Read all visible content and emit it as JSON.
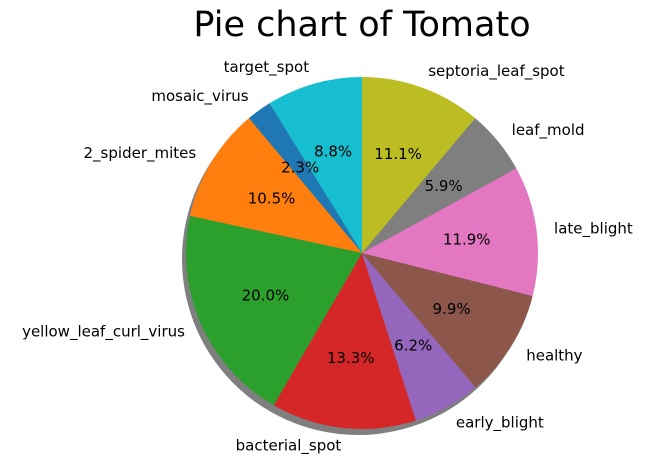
{
  "chart_data": {
    "type": "pie",
    "title": "Pie chart of Tomato",
    "shadow": true,
    "start_angle_deg": 90,
    "direction": "counterclockwise",
    "slices": [
      {
        "label": "target_spot",
        "value": 8.8,
        "pct_text": "8.8%",
        "color": "#17becf"
      },
      {
        "label": "mosaic_virus",
        "value": 2.3,
        "pct_text": "2.3%",
        "color": "#1f77b4"
      },
      {
        "label": "2_spider_mites",
        "value": 10.5,
        "pct_text": "10.5%",
        "color": "#ff7f0e"
      },
      {
        "label": "yellow_leaf_curl_virus",
        "value": 20.0,
        "pct_text": "20.0%",
        "color": "#2ca02c"
      },
      {
        "label": "bacterial_spot",
        "value": 13.3,
        "pct_text": "13.3%",
        "color": "#d62728"
      },
      {
        "label": "early_blight",
        "value": 6.2,
        "pct_text": "6.2%",
        "color": "#9467bd"
      },
      {
        "label": "healthy",
        "value": 9.9,
        "pct_text": "9.9%",
        "color": "#8c564b"
      },
      {
        "label": "late_blight",
        "value": 11.9,
        "pct_text": "11.9%",
        "color": "#e377c2"
      },
      {
        "label": "leaf_mold",
        "value": 5.9,
        "pct_text": "5.9%",
        "color": "#7f7f7f"
      },
      {
        "label": "septoria_leaf_spot",
        "value": 11.1,
        "pct_text": "11.1%",
        "color": "#bcbd22"
      }
    ]
  }
}
